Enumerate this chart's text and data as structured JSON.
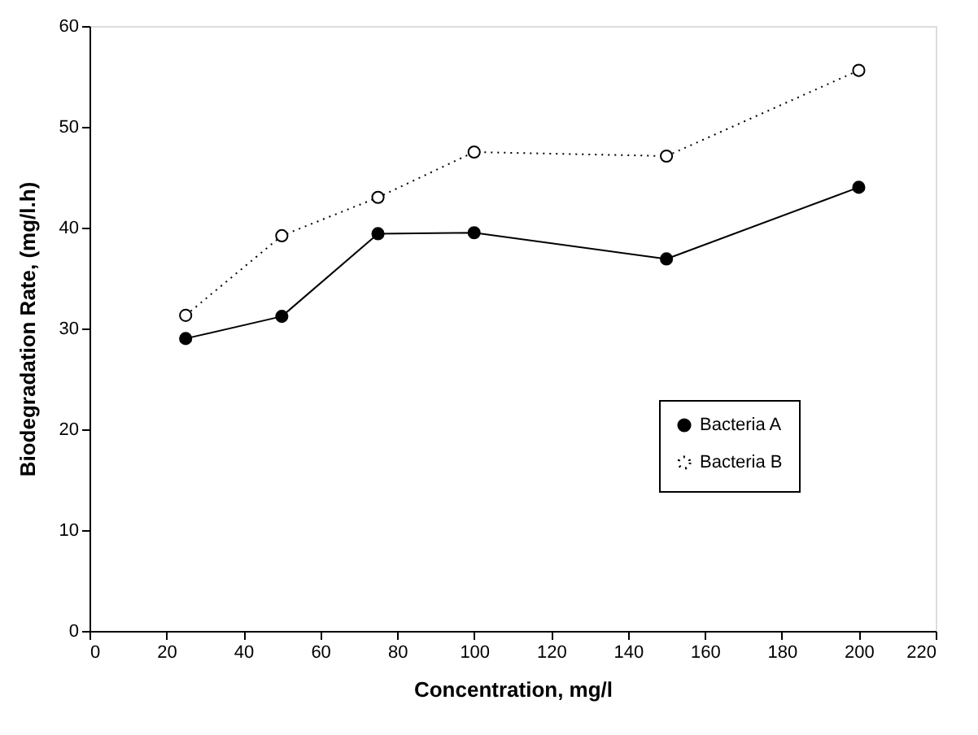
{
  "chart_data": {
    "type": "line",
    "xlabel": "Concentration, mg/l",
    "ylabel": "Biodegradation Rate, (mg/l.h)",
    "x": [
      25,
      50,
      75,
      100,
      150,
      200
    ],
    "series": [
      {
        "name": "Bacteria A",
        "color": "#000000",
        "values": [
          29.0,
          31.2,
          39.4,
          39.5,
          36.9,
          44.0
        ],
        "line_style": "solid"
      },
      {
        "name": "Bacteria B",
        "color": "#000000",
        "values": [
          31.3,
          39.2,
          43.0,
          47.5,
          47.1,
          55.6
        ],
        "line_style": "dotted"
      }
    ],
    "xlim": [
      0,
      220
    ],
    "xticks": [
      0,
      20,
      40,
      60,
      80,
      100,
      120,
      140,
      160,
      180,
      200,
      220
    ],
    "ylim": [
      0,
      60
    ],
    "yticks": [
      0,
      10,
      20,
      30,
      40,
      50,
      60
    ],
    "marker": "circle",
    "grid": false,
    "legend": "right"
  }
}
